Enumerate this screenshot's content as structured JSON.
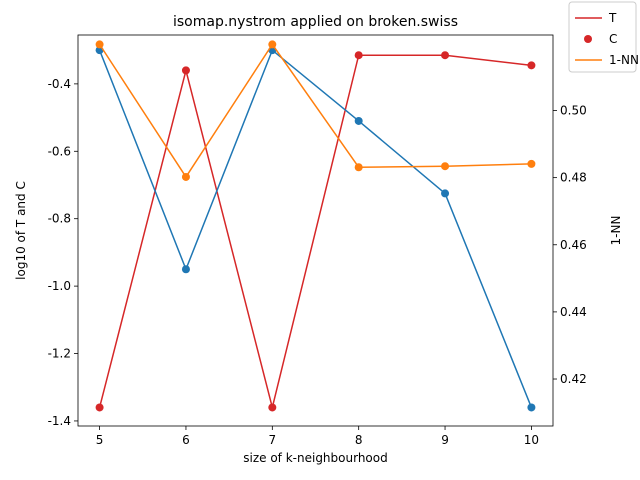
{
  "chart_data": {
    "type": "line",
    "title": "isomap.nystrom applied on broken.swiss",
    "xlabel": "size of k-neighbourhood",
    "ylabel_left": "log10 of T and C",
    "ylabel_right": "1-NN",
    "x": [
      5,
      6,
      7,
      8,
      9,
      10
    ],
    "x_ticks": [
      "5",
      "6",
      "7",
      "8",
      "9",
      "10"
    ],
    "xlim": [
      4.75,
      10.25
    ],
    "ylim_left": [
      -1.415,
      -0.255
    ],
    "yticks_left": [
      "-1.4",
      "-1.2",
      "-1.0",
      "-0.8",
      "-0.6",
      "-0.4"
    ],
    "yticks_left_values": [
      -1.4,
      -1.2,
      -1.0,
      -0.8,
      -0.6,
      -0.4
    ],
    "ylim_right": [
      0.406,
      0.5225
    ],
    "yticks_right": [
      "0.42",
      "0.44",
      "0.46",
      "0.48"
    ],
    "yticks_right_values": [
      0.42,
      0.44,
      0.46,
      0.48
    ],
    "series": [
      {
        "name": "T",
        "axis": "left",
        "color": "#d62728",
        "values": [
          -1.36,
          -0.36,
          -1.36,
          -0.315,
          -0.315,
          -0.345
        ]
      },
      {
        "name": "",
        "axis": "left",
        "color": "#1f77b4",
        "values": [
          -0.3,
          -0.95,
          -0.3,
          -0.51,
          -0.725,
          -1.36
        ]
      },
      {
        "name": "1-NN",
        "axis": "right",
        "color": "#ff7f0e",
        "values": [
          0.5197,
          0.4802,
          0.5197,
          0.4831,
          0.4834,
          0.4841
        ]
      }
    ],
    "legend": {
      "position": "top-right",
      "entries": [
        {
          "label": "T",
          "kind": "line",
          "color": "#d62728"
        },
        {
          "label": "C",
          "kind": "marker",
          "color": "#d62728"
        },
        {
          "label": "1-NN",
          "kind": "line",
          "color": "#ff7f0e"
        }
      ],
      "overlapped_right_tick": "0.50"
    }
  }
}
